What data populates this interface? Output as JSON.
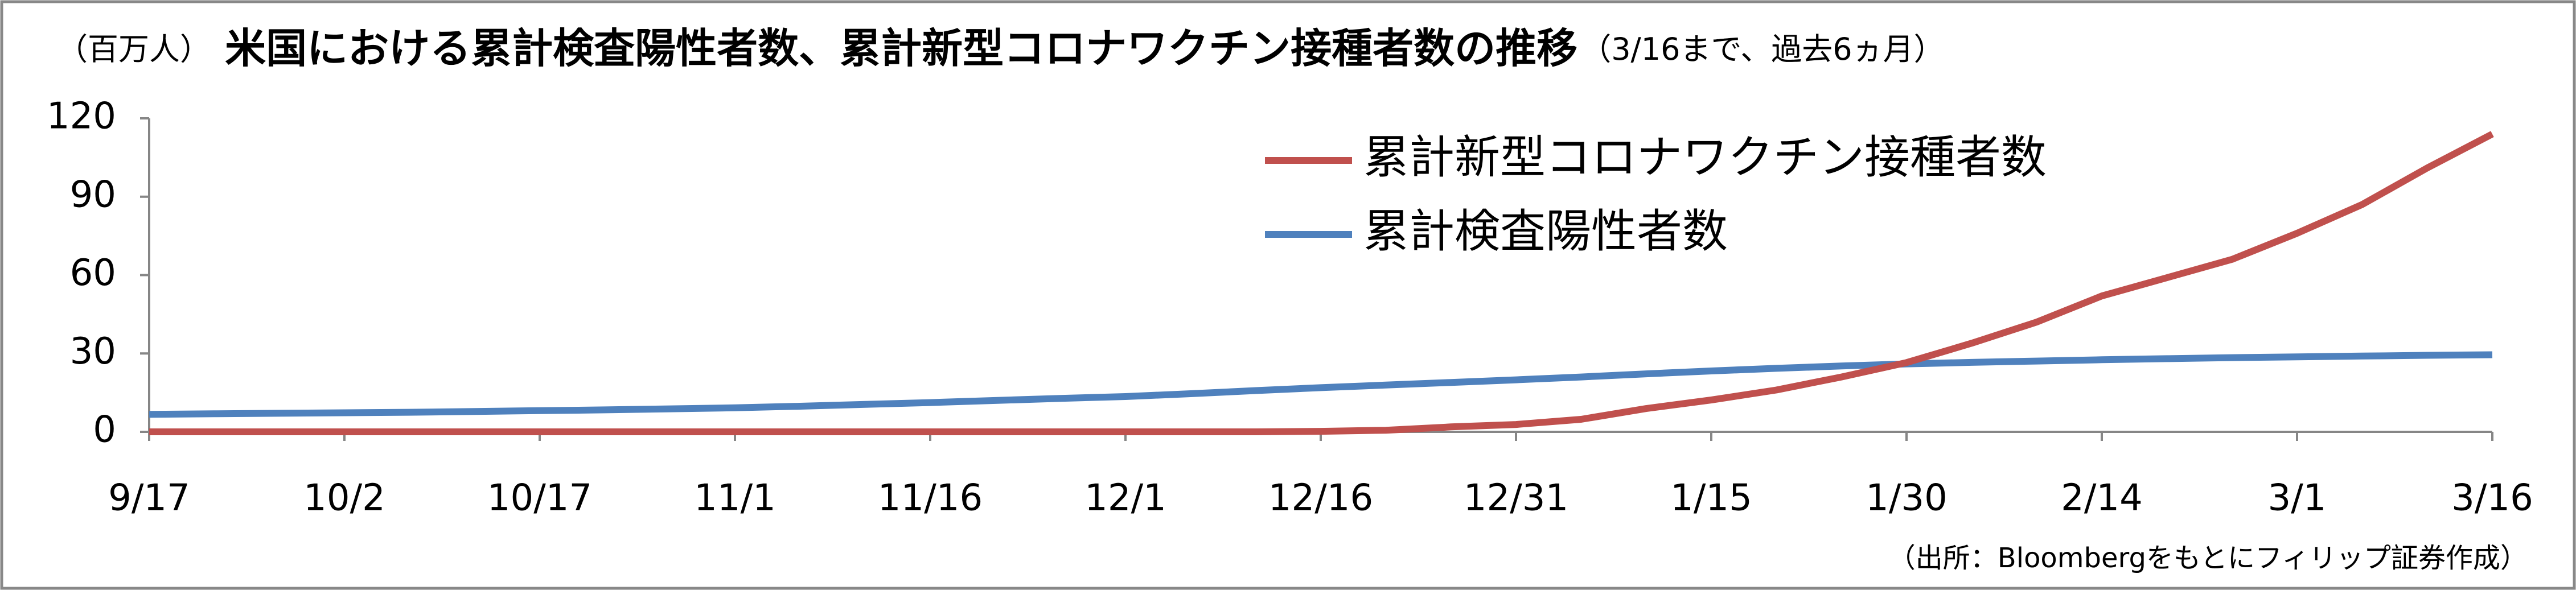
{
  "chart_data": {
    "type": "line",
    "unit_label": "（百万人）",
    "title": "米国における累計検査陽性者数、累計新型コロナワクチン接種者数の推移",
    "title_note": "（3/16まで、過去6ヵ月）",
    "source": "（出所：Bloombergをもとにフィリップ証券作成）",
    "categories": [
      "9/17",
      null,
      null,
      "10/2",
      null,
      null,
      "10/17",
      null,
      null,
      "11/1",
      null,
      null,
      "11/16",
      null,
      null,
      "12/1",
      null,
      null,
      "12/16",
      null,
      null,
      "12/31",
      null,
      null,
      "1/15",
      null,
      null,
      "1/30",
      null,
      null,
      "2/14",
      null,
      null,
      "3/1",
      null,
      null,
      "3/16"
    ],
    "series": [
      {
        "name": "累計新型コロナワクチン接種者数",
        "color": "#c0504d",
        "values": [
          0,
          0,
          0,
          0,
          0,
          0,
          0,
          0,
          0,
          0,
          0,
          0,
          0,
          0,
          0,
          0,
          0,
          0,
          0.2,
          0.6,
          1.9,
          2.8,
          4.8,
          8.9,
          12.2,
          16.0,
          21.0,
          26.5,
          33.9,
          42.0,
          52.0,
          59.0,
          66.0,
          76.0,
          87.0,
          101.0,
          114.0
        ]
      },
      {
        "name": "累計検査陽性者数",
        "color": "#4f81bd",
        "values": [
          6.7,
          6.9,
          7.1,
          7.3,
          7.5,
          7.8,
          8.1,
          8.4,
          8.8,
          9.2,
          9.8,
          10.5,
          11.2,
          12.0,
          12.8,
          13.5,
          14.6,
          15.8,
          16.9,
          17.9,
          18.9,
          19.9,
          21.0,
          22.2,
          23.3,
          24.3,
          25.2,
          26.0,
          26.6,
          27.1,
          27.6,
          28.0,
          28.4,
          28.7,
          29.0,
          29.3,
          29.5
        ]
      }
    ],
    "ylim": [
      0,
      120
    ],
    "yticks": [
      0,
      30,
      60,
      90,
      120
    ],
    "grid": false
  }
}
